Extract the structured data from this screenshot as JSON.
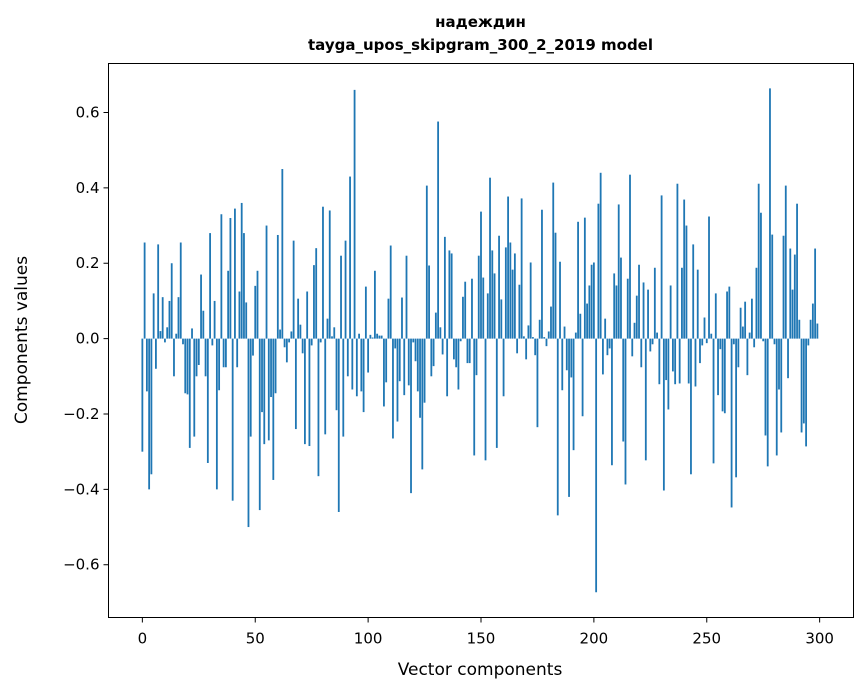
{
  "chart_data": {
    "type": "bar",
    "title_line1": "надеждин",
    "title_line2": "tayga_upos_skipgram_300_2_2019 model",
    "xlabel": "Vector components",
    "ylabel": "Components values",
    "xlim": [
      -15,
      315
    ],
    "ylim": [
      -0.74,
      0.73
    ],
    "xticks": [
      0,
      50,
      100,
      150,
      200,
      250,
      300
    ],
    "yticks": [
      -0.6,
      -0.4,
      -0.2,
      0.0,
      0.2,
      0.4,
      0.6
    ],
    "ytick_labels": [
      "−0.6",
      "−0.4",
      "−0.2",
      "0.0",
      "0.2",
      "0.4",
      "0.6"
    ],
    "bar_color": "#1f77b4",
    "grid": false,
    "values": [
      -0.3,
      0.255,
      -0.14,
      -0.4,
      -0.36,
      0.12,
      -0.08,
      0.25,
      0.02,
      0.11,
      -0.01,
      0.03,
      0.1,
      0.2,
      -0.1,
      0.013,
      0.11,
      0.255,
      -0.015,
      -0.145,
      -0.148,
      -0.29,
      0.027,
      -0.26,
      -0.1,
      -0.07,
      0.17,
      0.074,
      -0.1,
      -0.33,
      0.28,
      -0.018,
      0.1,
      -0.4,
      -0.137,
      0.33,
      -0.076,
      -0.076,
      0.18,
      0.32,
      -0.43,
      0.345,
      -0.076,
      0.125,
      0.36,
      0.28,
      0.096,
      -0.5,
      -0.26,
      -0.045,
      0.14,
      0.18,
      -0.455,
      -0.195,
      -0.28,
      0.3,
      -0.27,
      -0.155,
      -0.375,
      -0.145,
      0.275,
      0.024,
      0.45,
      -0.023,
      -0.063,
      -0.01,
      0.019,
      0.26,
      -0.24,
      0.106,
      0.037,
      -0.039,
      -0.28,
      0.125,
      -0.285,
      -0.018,
      0.195,
      0.24,
      -0.365,
      -0.01,
      0.35,
      -0.254,
      0.053,
      0.34,
      0.006,
      0.03,
      -0.19,
      -0.46,
      0.22,
      -0.26,
      0.26,
      -0.1,
      0.43,
      -0.135,
      0.66,
      -0.153,
      0.013,
      -0.14,
      -0.195,
      0.138,
      -0.09,
      0.01,
      0.003,
      0.18,
      0.013,
      0.008,
      0.008,
      -0.18,
      -0.116,
      0.106,
      0.247,
      -0.265,
      -0.026,
      -0.22,
      -0.113,
      0.109,
      -0.15,
      0.22,
      -0.124,
      -0.41,
      -0.01,
      -0.06,
      -0.14,
      -0.21,
      -0.347,
      -0.17,
      0.406,
      0.194,
      -0.1,
      -0.073,
      0.069,
      0.576,
      0.03,
      -0.042,
      0.27,
      -0.153,
      0.234,
      0.226,
      -0.055,
      -0.076,
      -0.135,
      -0.007,
      0.111,
      0.151,
      -0.065,
      -0.065,
      0.159,
      -0.31,
      -0.097,
      0.22,
      0.337,
      0.162,
      -0.323,
      0.12,
      0.427,
      0.234,
      0.173,
      -0.29,
      0.273,
      0.104,
      -0.153,
      0.242,
      0.377,
      0.255,
      0.183,
      0.226,
      -0.039,
      0.143,
      0.372,
      0.006,
      -0.055,
      0.035,
      0.202,
      0.004,
      -0.044,
      -0.235,
      0.05,
      0.342,
      0.004,
      -0.02,
      0.019,
      0.085,
      0.414,
      0.281,
      -0.469,
      0.204,
      -0.137,
      0.032,
      -0.084,
      -0.42,
      -0.103,
      -0.296,
      0.016,
      0.31,
      0.066,
      -0.206,
      0.321,
      0.093,
      0.141,
      0.196,
      0.202,
      -0.673,
      0.358,
      0.44,
      -0.095,
      0.053,
      -0.044,
      -0.026,
      -0.336,
      0.173,
      0.141,
      0.356,
      0.215,
      -0.273,
      -0.387,
      0.159,
      0.435,
      -0.047,
      0.042,
      0.114,
      0.196,
      -0.076,
      0.149,
      -0.323,
      0.13,
      -0.034,
      -0.015,
      0.188,
      0.016,
      -0.121,
      0.38,
      -0.403,
      -0.11,
      -0.188,
      0.141,
      -0.087,
      -0.121,
      0.411,
      -0.119,
      0.188,
      0.369,
      0.3,
      -0.119,
      -0.36,
      0.25,
      -0.127,
      0.183,
      -0.065,
      -0.018,
      0.056,
      -0.012,
      0.324,
      0.013,
      -0.331,
      0.12,
      -0.15,
      -0.028,
      -0.193,
      -0.198,
      0.125,
      0.138,
      -0.448,
      -0.015,
      -0.368,
      -0.076,
      0.082,
      0.032,
      0.098,
      -0.097,
      0.016,
      0.106,
      -0.023,
      0.188,
      0.411,
      0.334,
      -0.007,
      -0.257,
      -0.339,
      0.664,
      0.276,
      -0.015,
      -0.31,
      -0.135,
      -0.249,
      0.273,
      0.406,
      -0.105,
      0.239,
      0.13,
      0.223,
      0.358,
      0.05,
      -0.249,
      -0.225,
      -0.286,
      -0.018,
      0.05,
      0.093,
      0.239,
      0.04
    ]
  }
}
